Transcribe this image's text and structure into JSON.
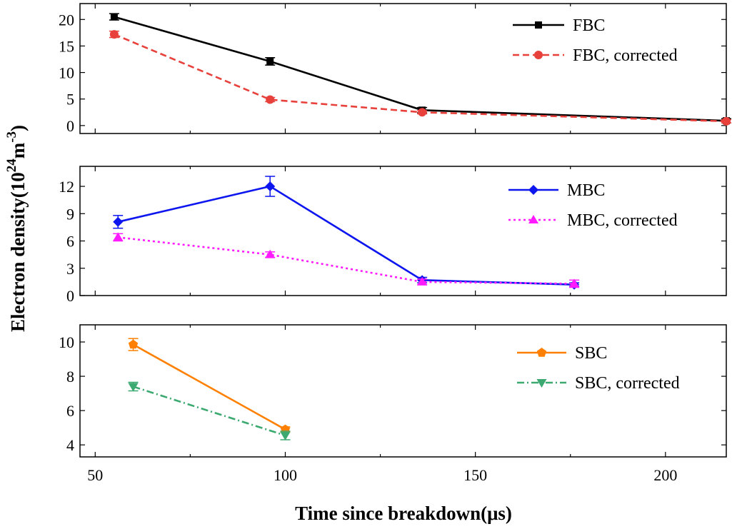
{
  "chart_data": {
    "type": "line",
    "xlabel": "Time since breakdown(μs)",
    "ylabel": "Electron density(10^24 m^-3)",
    "ylabel_parts": {
      "base": "Electron density(10",
      "exp1": "24",
      "mid": "m",
      "exp2": "-3",
      "end": ")"
    },
    "xlim": [
      46,
      216
    ],
    "xticks": [
      50,
      100,
      150,
      200
    ],
    "panels": [
      {
        "ylim": [
          -1.5,
          23.0
        ],
        "yticks": [
          0,
          5,
          10,
          15,
          20
        ],
        "legend_position": "top-right",
        "series": [
          {
            "name": "FBC",
            "color": "#000000",
            "dash": "solid",
            "marker": "square",
            "x": [
              55,
              96,
              136,
              216
            ],
            "y": [
              20.5,
              12.1,
              2.9,
              0.9
            ],
            "err": [
              0.6,
              0.7,
              0.5,
              0.4
            ]
          },
          {
            "name": "FBC, corrected",
            "color": "#e8413c",
            "dash": "dashed",
            "marker": "circle",
            "x": [
              55,
              96,
              136,
              216
            ],
            "y": [
              17.2,
              4.9,
              2.5,
              0.8
            ],
            "err": [
              0.6,
              0.4,
              0.3,
              0.3
            ]
          }
        ]
      },
      {
        "ylim": [
          0,
          14.2
        ],
        "yticks": [
          0,
          3,
          6,
          9,
          12
        ],
        "legend_position": "top-right",
        "series": [
          {
            "name": "MBC",
            "color": "#0d16ee",
            "dash": "solid",
            "marker": "diamond",
            "x": [
              56,
              96,
              136,
              176
            ],
            "y": [
              8.1,
              12.0,
              1.7,
              1.2
            ],
            "err": [
              0.7,
              1.1,
              0.3,
              0.2
            ]
          },
          {
            "name": "MBC, corrected",
            "color": "#ff1aff",
            "dash": "dotted",
            "marker": "triangle-up",
            "x": [
              56,
              96,
              136,
              176
            ],
            "y": [
              6.4,
              4.5,
              1.5,
              1.3
            ],
            "err": [
              0.4,
              0.3,
              0.3,
              0.4
            ]
          }
        ]
      },
      {
        "ylim": [
          3.3,
          11.0
        ],
        "yticks": [
          4,
          6,
          8,
          10
        ],
        "legend_position": "top-right",
        "series": [
          {
            "name": "SBC",
            "color": "#ff8000",
            "dash": "solid",
            "marker": "pentagon",
            "x": [
              60,
              100
            ],
            "y": [
              9.85,
              4.9
            ],
            "err": [
              0.35,
              0.15
            ]
          },
          {
            "name": "SBC, corrected",
            "color": "#3ca970",
            "dash": "dashdot",
            "marker": "triangle-down",
            "x": [
              60,
              100
            ],
            "y": [
              7.4,
              4.55
            ],
            "err": [
              0.25,
              0.25
            ]
          }
        ]
      }
    ]
  }
}
